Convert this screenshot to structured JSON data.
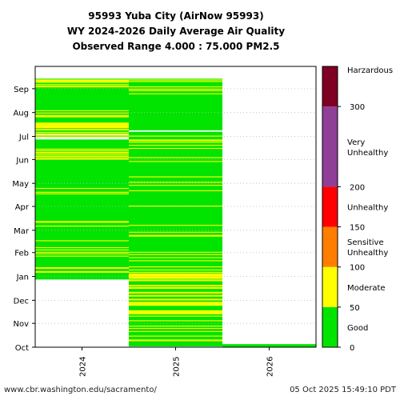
{
  "chart_data": {
    "type": "heatmap",
    "title": [
      "95993 Yuba City (AirNow 95993)",
      "WY 2024-2026 Daily Average Air Quality",
      "Observed Range 4.000 : 75.000 PM2.5"
    ],
    "x_categories": [
      "2024",
      "2025",
      "2026"
    ],
    "y_range_months": [
      "Oct",
      "Nov",
      "Dec",
      "Jan",
      "Feb",
      "Mar",
      "Apr",
      "May",
      "Jun",
      "Jul",
      "Aug",
      "Sep"
    ],
    "y_axis_range_days": [
      0,
      365
    ],
    "grid": "dotted horizontal at month ticks",
    "colorbar": {
      "labels": [
        "Good",
        "Moderate",
        "Sensitive\nUnhealthy",
        "Unhealthy",
        "Very\nUnhealthy",
        "Harzardous"
      ],
      "ticks": [
        0,
        50,
        100,
        150,
        200,
        300
      ],
      "bands": [
        {
          "name": "Good",
          "from": 0,
          "to": 50,
          "color": "#00e400"
        },
        {
          "name": "Moderate",
          "from": 50,
          "to": 100,
          "color": "#ffff00"
        },
        {
          "name": "Sensitive Unhealthy",
          "from": 100,
          "to": 150,
          "color": "#ff7e00"
        },
        {
          "name": "Unhealthy",
          "from": 150,
          "to": 200,
          "color": "#ff0000"
        },
        {
          "name": "Very Unhealthy",
          "from": 200,
          "to": 300,
          "color": "#8f3f97"
        },
        {
          "name": "Harzardous",
          "from": 300,
          "to": 350,
          "color": "#7e0023"
        }
      ]
    },
    "columns": [
      {
        "year": "2024",
        "data_start_day": 88,
        "data_end_day": 349,
        "moderate_days": [
          97,
          98,
          102,
          103,
          118,
          121,
          123,
          126,
          129,
          138,
          157,
          162,
          163,
          199,
          201,
          206,
          244,
          245,
          247,
          248,
          250,
          252,
          253,
          255,
          257,
          273,
          275,
          277,
          279,
          282,
          283,
          285,
          286,
          287,
          288,
          289,
          290,
          291,
          299,
          300,
          301,
          304,
          307,
          338,
          339,
          341,
          344,
          345,
          346,
          347
        ],
        "missing_days": [
          270,
          271,
          272,
          276
        ]
      },
      {
        "year": "2025",
        "data_start_day": 1,
        "data_end_day": 349,
        "moderate_days": [
          8,
          9,
          14,
          20,
          24,
          27,
          34,
          40,
          43,
          44,
          45,
          46,
          47,
          54,
          55,
          56,
          57,
          58,
          61,
          62,
          66,
          67,
          70,
          71,
          76,
          77,
          79,
          80,
          86,
          87,
          89,
          90,
          91,
          92,
          93,
          94,
          95,
          97,
          100,
          104,
          112,
          116,
          120,
          123,
          144,
          145,
          149,
          158,
          183,
          203,
          210,
          214,
          221,
          241,
          246,
          258,
          262,
          266,
          268,
          269,
          274,
          329,
          333,
          335,
          338,
          345,
          347
        ],
        "missing_days": [
          280,
          281
        ]
      },
      {
        "year": "2026",
        "data_start_day": 0,
        "data_end_day": 4,
        "moderate_days": [],
        "missing_days": []
      }
    ]
  },
  "footer": {
    "url": "www.cbr.washington.edu/sacramento/",
    "timestamp": "05 Oct 2025 15:49:10 PDT"
  }
}
